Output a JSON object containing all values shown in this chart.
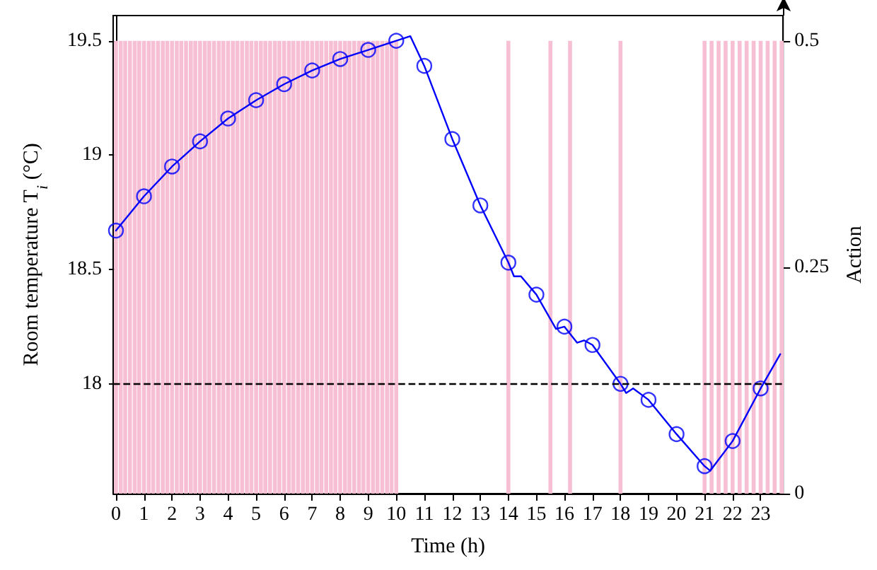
{
  "chart_data": {
    "type": "line",
    "xlabel": "Time (h)",
    "ylabel": "Room temperature T$_{i}$ (°C)",
    "y2label": "Action",
    "xlim": [
      -0.1,
      23.8
    ],
    "xticks": [
      0,
      1,
      2,
      3,
      4,
      5,
      6,
      7,
      8,
      9,
      10,
      11,
      12,
      13,
      14,
      15,
      16,
      17,
      18,
      19,
      20,
      21,
      22,
      23
    ],
    "ylim": [
      17.52,
      19.61
    ],
    "yticks": [
      18,
      18.5,
      19,
      19.5
    ],
    "y2lim": [
      0,
      0.528
    ],
    "y2ticks": [
      0,
      0.25,
      0.5
    ],
    "grid": false,
    "series": [
      {
        "type": "bar",
        "axis": "y2",
        "color": "#f7bfd3",
        "x": [
          0,
          0.17,
          0.33,
          0.5,
          0.67,
          0.83,
          1,
          1.17,
          1.33,
          1.5,
          1.67,
          1.83,
          2,
          2.17,
          2.33,
          2.5,
          2.67,
          2.83,
          3,
          3.17,
          3.33,
          3.5,
          3.67,
          3.83,
          4,
          4.17,
          4.33,
          4.5,
          4.67,
          4.83,
          5,
          5.17,
          5.33,
          5.5,
          5.67,
          5.83,
          6,
          6.17,
          6.33,
          6.5,
          6.67,
          6.83,
          7,
          7.17,
          7.33,
          7.5,
          7.67,
          7.83,
          8,
          8.17,
          8.33,
          8.5,
          8.67,
          8.83,
          9,
          9.17,
          9.33,
          9.5,
          9.67,
          9.83,
          10,
          14,
          15.5,
          16.2,
          18,
          21,
          21.25,
          21.5,
          21.75,
          22,
          22.25,
          22.5,
          22.75,
          23,
          23.25,
          23.5,
          23.75
        ],
        "values": [
          0.5,
          0.5,
          0.5,
          0.5,
          0.5,
          0.5,
          0.5,
          0.5,
          0.5,
          0.5,
          0.5,
          0.5,
          0.5,
          0.5,
          0.5,
          0.5,
          0.5,
          0.5,
          0.5,
          0.5,
          0.5,
          0.5,
          0.5,
          0.5,
          0.5,
          0.5,
          0.5,
          0.5,
          0.5,
          0.5,
          0.5,
          0.5,
          0.5,
          0.5,
          0.5,
          0.5,
          0.5,
          0.5,
          0.5,
          0.5,
          0.5,
          0.5,
          0.5,
          0.5,
          0.5,
          0.5,
          0.5,
          0.5,
          0.5,
          0.5,
          0.5,
          0.5,
          0.5,
          0.5,
          0.5,
          0.5,
          0.5,
          0.5,
          0.5,
          0.5,
          0.5,
          0.5,
          0.5,
          0.5,
          0.5,
          0.5,
          0.5,
          0.5,
          0.5,
          0.5,
          0.5,
          0.5,
          0.5,
          0.5,
          0.5,
          0.5,
          0.5
        ]
      },
      {
        "color": "#0000ff",
        "marker": "none",
        "line_style": "solid",
        "x": [
          0,
          1,
          2,
          3,
          4,
          5,
          6,
          7,
          8,
          9,
          10,
          10.5,
          11,
          12,
          13,
          14,
          14.2,
          14.45,
          15,
          15.7,
          16,
          16.45,
          16.7,
          17,
          18,
          18.2,
          18.45,
          19,
          20,
          21,
          21.2,
          22,
          23,
          23.7
        ],
        "values": [
          18.67,
          18.82,
          18.95,
          19.06,
          19.16,
          19.24,
          19.31,
          19.37,
          19.42,
          19.46,
          19.5,
          19.52,
          19.39,
          19.07,
          18.78,
          18.53,
          18.47,
          18.47,
          18.39,
          18.24,
          18.25,
          18.18,
          18.19,
          18.17,
          18.0,
          17.96,
          17.98,
          17.93,
          17.78,
          17.64,
          17.62,
          17.75,
          17.98,
          18.13
        ]
      },
      {
        "type": "scatter",
        "color": "#0000ff",
        "marker": "circle",
        "x": [
          0,
          1,
          2,
          3,
          4,
          5,
          6,
          7,
          8,
          9,
          10,
          11,
          12,
          13,
          14,
          15,
          16,
          17,
          18,
          19,
          20,
          21,
          22,
          23
        ],
        "values": [
          18.67,
          18.82,
          18.95,
          19.06,
          19.16,
          19.24,
          19.31,
          19.37,
          19.42,
          19.46,
          19.5,
          19.39,
          19.07,
          18.78,
          18.53,
          18.39,
          18.25,
          18.17,
          18.0,
          17.93,
          17.78,
          17.64,
          17.75,
          17.98
        ]
      }
    ],
    "ref_lines": [
      {
        "axis": "y",
        "value": 18,
        "color": "#000000",
        "line_style": "dashed"
      }
    ]
  }
}
